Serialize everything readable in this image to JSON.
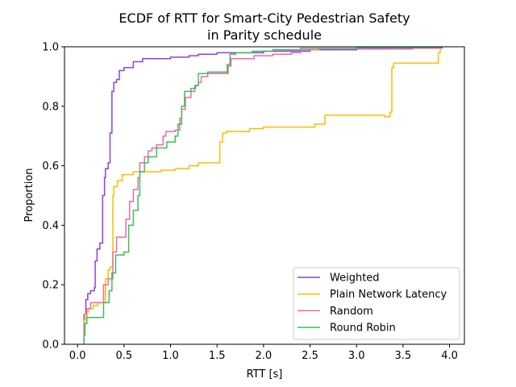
{
  "chart_data": {
    "type": "line",
    "title_line1": "ECDF of RTT for Smart-City Pedestrian Safety",
    "title_line2": "in Parity schedule",
    "xlabel": "RTT [s]",
    "ylabel": "Proportion",
    "xlim": [
      -0.14,
      4.16
    ],
    "ylim": [
      0.0,
      1.0
    ],
    "xticks": [
      0.0,
      0.5,
      1.0,
      1.5,
      2.0,
      2.5,
      3.0,
      3.5,
      4.0
    ],
    "xtick_labels": [
      "0.0",
      "0.5",
      "1.0",
      "1.5",
      "2.0",
      "2.5",
      "3.0",
      "3.5",
      "4.0"
    ],
    "yticks": [
      0.0,
      0.2,
      0.4,
      0.6,
      0.8,
      1.0
    ],
    "ytick_labels": [
      "0.0",
      "0.2",
      "0.4",
      "0.6",
      "0.8",
      "1.0"
    ],
    "grid": false,
    "legend_position": "lower-right",
    "series": [
      {
        "name": "Weighted",
        "color": "#8c42e0",
        "points": [
          [
            0.07,
            0.0
          ],
          [
            0.07,
            0.1
          ],
          [
            0.09,
            0.15
          ],
          [
            0.11,
            0.17
          ],
          [
            0.14,
            0.18
          ],
          [
            0.18,
            0.19
          ],
          [
            0.19,
            0.28
          ],
          [
            0.21,
            0.32
          ],
          [
            0.24,
            0.34
          ],
          [
            0.27,
            0.34
          ],
          [
            0.27,
            0.5
          ],
          [
            0.29,
            0.56
          ],
          [
            0.3,
            0.59
          ],
          [
            0.33,
            0.61
          ],
          [
            0.35,
            0.71
          ],
          [
            0.37,
            0.85
          ],
          [
            0.39,
            0.88
          ],
          [
            0.42,
            0.89
          ],
          [
            0.45,
            0.92
          ],
          [
            0.5,
            0.93
          ],
          [
            0.6,
            0.95
          ],
          [
            0.7,
            0.96
          ],
          [
            0.9,
            0.96
          ],
          [
            1.0,
            0.965
          ],
          [
            1.2,
            0.97
          ],
          [
            1.3,
            0.975
          ],
          [
            1.5,
            0.98
          ],
          [
            2.0,
            0.985
          ],
          [
            2.5,
            0.99
          ],
          [
            3.0,
            0.993
          ],
          [
            3.6,
            0.996
          ],
          [
            3.92,
            1.0
          ]
        ]
      },
      {
        "name": "Plain Network Latency",
        "color": "#ffbb00",
        "points": [
          [
            0.07,
            0.0
          ],
          [
            0.07,
            0.08
          ],
          [
            0.08,
            0.1
          ],
          [
            0.1,
            0.11
          ],
          [
            0.12,
            0.12
          ],
          [
            0.17,
            0.13
          ],
          [
            0.22,
            0.14
          ],
          [
            0.3,
            0.22
          ],
          [
            0.33,
            0.25
          ],
          [
            0.35,
            0.26
          ],
          [
            0.38,
            0.5
          ],
          [
            0.39,
            0.53
          ],
          [
            0.43,
            0.55
          ],
          [
            0.48,
            0.57
          ],
          [
            0.6,
            0.58
          ],
          [
            0.9,
            0.585
          ],
          [
            1.05,
            0.59
          ],
          [
            1.2,
            0.6
          ],
          [
            1.3,
            0.61
          ],
          [
            1.52,
            0.61
          ],
          [
            1.53,
            0.68
          ],
          [
            1.56,
            0.71
          ],
          [
            1.6,
            0.715
          ],
          [
            1.85,
            0.725
          ],
          [
            2.0,
            0.73
          ],
          [
            2.3,
            0.73
          ],
          [
            2.55,
            0.74
          ],
          [
            2.64,
            0.74
          ],
          [
            2.66,
            0.77
          ],
          [
            3.0,
            0.77
          ],
          [
            3.3,
            0.765
          ],
          [
            3.36,
            0.78
          ],
          [
            3.38,
            0.93
          ],
          [
            3.4,
            0.945
          ],
          [
            3.84,
            0.945
          ],
          [
            3.88,
            0.98
          ],
          [
            3.9,
            1.0
          ]
        ]
      },
      {
        "name": "Random",
        "color": "#ef69a8",
        "points": [
          [
            0.07,
            0.0
          ],
          [
            0.07,
            0.07
          ],
          [
            0.1,
            0.12
          ],
          [
            0.14,
            0.14
          ],
          [
            0.2,
            0.14
          ],
          [
            0.28,
            0.2
          ],
          [
            0.33,
            0.22
          ],
          [
            0.38,
            0.31
          ],
          [
            0.42,
            0.36
          ],
          [
            0.5,
            0.36
          ],
          [
            0.52,
            0.42
          ],
          [
            0.56,
            0.48
          ],
          [
            0.6,
            0.52
          ],
          [
            0.65,
            0.56
          ],
          [
            0.67,
            0.61
          ],
          [
            0.72,
            0.63
          ],
          [
            0.76,
            0.65
          ],
          [
            0.8,
            0.66
          ],
          [
            0.85,
            0.67
          ],
          [
            0.92,
            0.7
          ],
          [
            0.95,
            0.715
          ],
          [
            1.05,
            0.72
          ],
          [
            1.1,
            0.76
          ],
          [
            1.12,
            0.79
          ],
          [
            1.16,
            0.83
          ],
          [
            1.22,
            0.85
          ],
          [
            1.26,
            0.87
          ],
          [
            1.3,
            0.88
          ],
          [
            1.33,
            0.9
          ],
          [
            1.4,
            0.91
          ],
          [
            1.6,
            0.91
          ],
          [
            1.62,
            0.935
          ],
          [
            1.65,
            0.96
          ],
          [
            1.8,
            0.96
          ],
          [
            1.9,
            0.97
          ],
          [
            2.1,
            0.975
          ],
          [
            2.3,
            0.98
          ],
          [
            2.4,
            0.99
          ],
          [
            2.6,
            0.995
          ],
          [
            3.88,
            1.0
          ]
        ]
      },
      {
        "name": "Round Robin",
        "color": "#3dbf55",
        "points": [
          [
            0.07,
            0.0
          ],
          [
            0.07,
            0.03
          ],
          [
            0.08,
            0.07
          ],
          [
            0.1,
            0.09
          ],
          [
            0.25,
            0.09
          ],
          [
            0.28,
            0.14
          ],
          [
            0.34,
            0.18
          ],
          [
            0.37,
            0.24
          ],
          [
            0.41,
            0.3
          ],
          [
            0.5,
            0.31
          ],
          [
            0.55,
            0.4
          ],
          [
            0.6,
            0.45
          ],
          [
            0.65,
            0.5
          ],
          [
            0.67,
            0.58
          ],
          [
            0.72,
            0.61
          ],
          [
            0.76,
            0.63
          ],
          [
            0.85,
            0.66
          ],
          [
            0.96,
            0.68
          ],
          [
            1.05,
            0.7
          ],
          [
            1.08,
            0.74
          ],
          [
            1.12,
            0.8
          ],
          [
            1.15,
            0.85
          ],
          [
            1.22,
            0.86
          ],
          [
            1.27,
            0.87
          ],
          [
            1.3,
            0.91
          ],
          [
            1.4,
            0.915
          ],
          [
            1.58,
            0.915
          ],
          [
            1.61,
            0.94
          ],
          [
            1.64,
            0.975
          ],
          [
            1.7,
            0.98
          ],
          [
            1.85,
            0.98
          ],
          [
            1.88,
            0.985
          ],
          [
            2.0,
            0.985
          ],
          [
            2.1,
            0.99
          ],
          [
            2.3,
            0.99
          ],
          [
            2.4,
            0.995
          ],
          [
            3.0,
            0.998
          ],
          [
            3.9,
            1.0
          ]
        ]
      }
    ]
  }
}
